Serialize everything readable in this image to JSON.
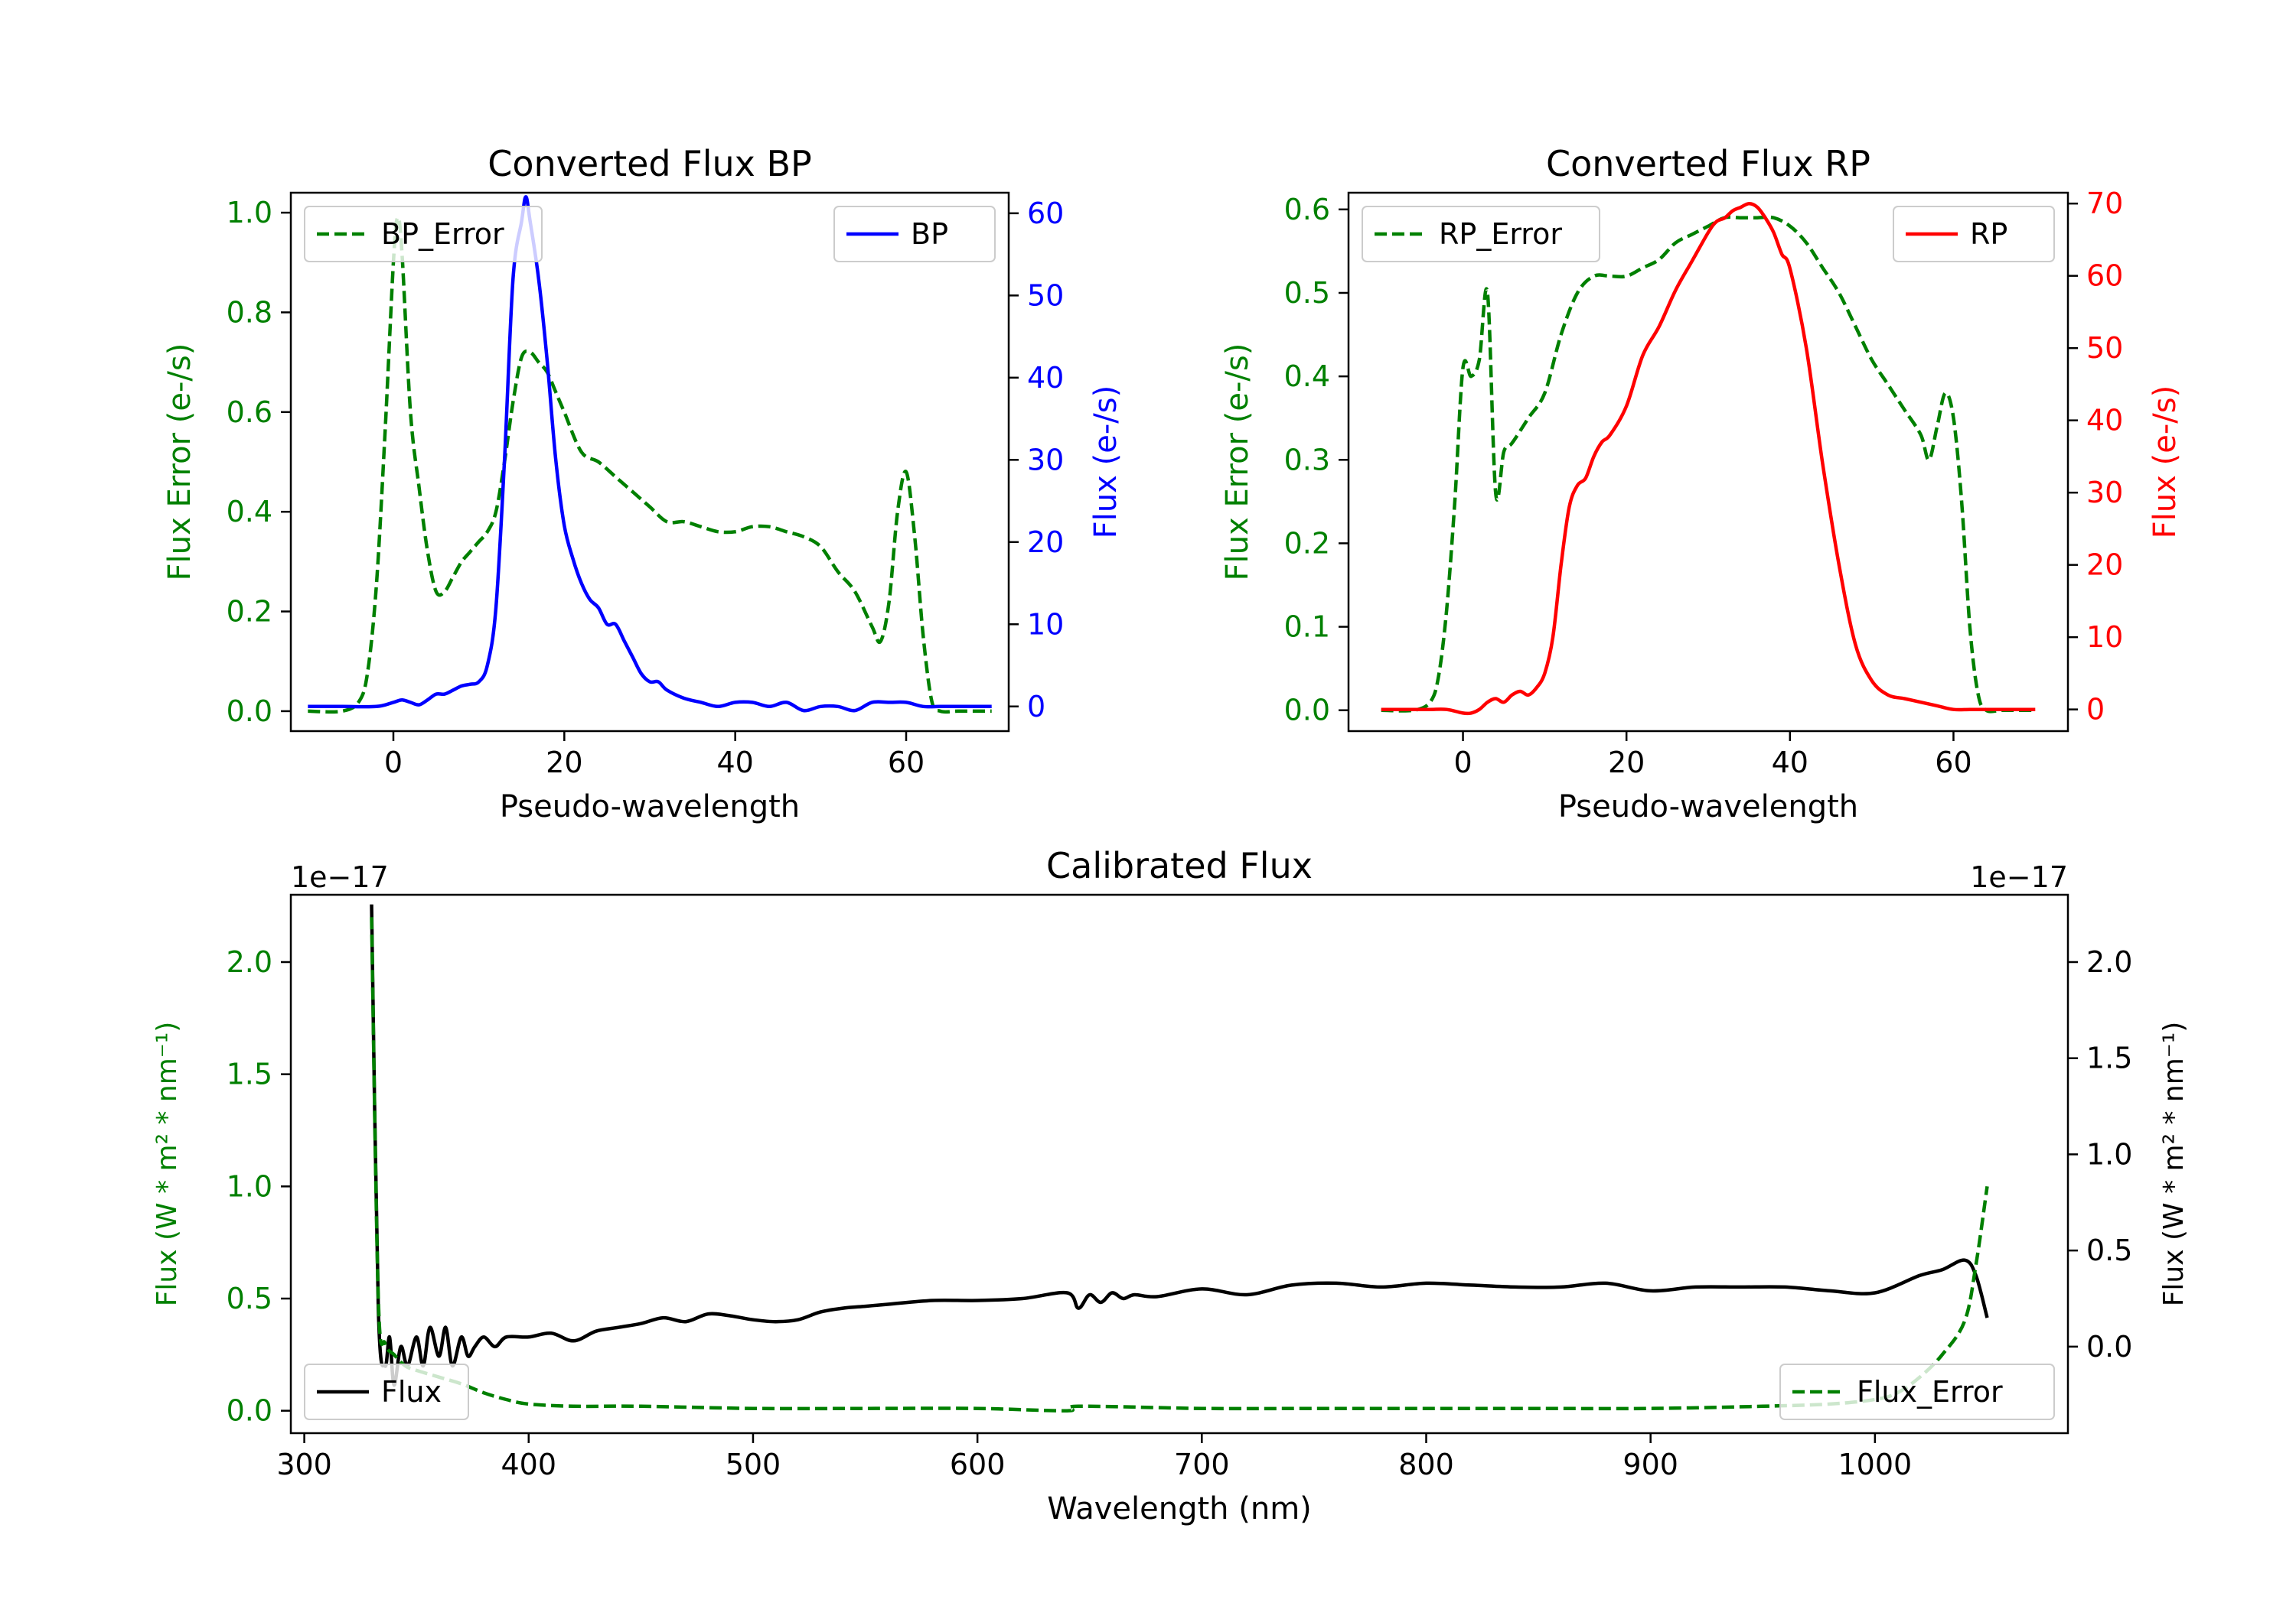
{
  "colors": {
    "error": "#008000",
    "bp": "#0000ff",
    "rp": "#ff0000",
    "flux": "#000000",
    "axis": "#000000"
  },
  "chart_data": [
    {
      "id": "bp",
      "type": "line",
      "title": "Converted Flux BP",
      "xlabel": "Pseudo-wavelength",
      "ylabel_left": "Flux Error (e-/s)",
      "ylabel_right": "Flux (e-/s)",
      "xlim": [
        -12,
        72
      ],
      "ylim_left": [
        -0.04,
        1.04
      ],
      "ylim_right": [
        -3,
        62.5
      ],
      "xticks": [
        0,
        20,
        40,
        60
      ],
      "yticks_left": [
        0.0,
        0.2,
        0.4,
        0.6,
        0.8,
        1.0
      ],
      "yticks_right": [
        0,
        10,
        20,
        30,
        40,
        50,
        60
      ],
      "ytick_labels_left": [
        "0.0",
        "0.2",
        "0.4",
        "0.6",
        "0.8",
        "1.0"
      ],
      "ytick_labels_right": [
        "0",
        "10",
        "20",
        "30",
        "40",
        "50",
        "60"
      ],
      "legend_left": "BP_Error",
      "legend_right": "BP",
      "series": [
        {
          "name": "BP_Error",
          "axis": "left",
          "style": "dashed",
          "color": "#008000",
          "x": [
            -10,
            -6,
            -4,
            -3,
            -2,
            -1,
            0,
            0.5,
            1,
            2,
            3,
            4,
            5,
            6,
            7,
            8,
            9,
            10,
            11,
            12,
            13,
            14,
            15,
            16,
            17,
            18,
            19,
            20,
            22,
            24,
            26,
            28,
            30,
            32,
            34,
            36,
            38,
            40,
            42,
            44,
            46,
            48,
            50,
            52,
            54,
            56,
            57,
            58,
            59,
            60,
            61,
            62,
            63,
            64,
            66,
            68,
            70
          ],
          "y": [
            0.0,
            0.0,
            0.02,
            0.08,
            0.25,
            0.55,
            0.9,
            0.99,
            0.92,
            0.6,
            0.45,
            0.32,
            0.24,
            0.24,
            0.27,
            0.3,
            0.32,
            0.34,
            0.36,
            0.4,
            0.5,
            0.62,
            0.71,
            0.72,
            0.7,
            0.68,
            0.64,
            0.6,
            0.52,
            0.5,
            0.47,
            0.44,
            0.41,
            0.38,
            0.38,
            0.37,
            0.36,
            0.36,
            0.37,
            0.37,
            0.36,
            0.35,
            0.33,
            0.28,
            0.24,
            0.17,
            0.14,
            0.22,
            0.4,
            0.48,
            0.35,
            0.15,
            0.02,
            0.0,
            0.0,
            0.0,
            0.0
          ]
        },
        {
          "name": "BP",
          "axis": "right",
          "style": "solid",
          "color": "#0000ff",
          "x": [
            -10,
            -6,
            -2,
            0,
            1,
            2,
            3,
            4,
            5,
            6,
            7,
            8,
            9,
            10,
            11,
            12,
            13,
            14,
            15,
            15.5,
            16,
            17,
            18,
            19,
            20,
            21,
            22,
            23,
            24,
            25,
            26,
            27,
            28,
            29,
            30,
            31,
            32,
            34,
            36,
            38,
            40,
            42,
            44,
            46,
            48,
            50,
            52,
            54,
            56,
            58,
            60,
            62,
            64,
            66,
            68,
            70
          ],
          "y": [
            0,
            0,
            0,
            0.5,
            0.8,
            0.5,
            0.2,
            0.8,
            1.5,
            1.5,
            2,
            2.5,
            2.7,
            3,
            5,
            12,
            30,
            52,
            59,
            62,
            59,
            52,
            42,
            30,
            22,
            18,
            15,
            13,
            12,
            10,
            10,
            8,
            6,
            4,
            3,
            3,
            2,
            1,
            0.5,
            0,
            0.5,
            0.5,
            0,
            0.5,
            -0.5,
            0,
            0,
            -0.5,
            0.5,
            0.5,
            0.5,
            0,
            0,
            0,
            0,
            0
          ]
        }
      ]
    },
    {
      "id": "rp",
      "type": "line",
      "title": "Converted Flux RP",
      "xlabel": "Pseudo-wavelength",
      "ylabel_left": "Flux Error (e-/s)",
      "ylabel_right": "Flux (e-/s)",
      "xlim": [
        -14,
        74
      ],
      "ylim_left": [
        -0.025,
        0.62
      ],
      "ylim_right": [
        -3,
        71.5
      ],
      "xticks": [
        0,
        20,
        40,
        60
      ],
      "yticks_left": [
        0.0,
        0.1,
        0.2,
        0.3,
        0.4,
        0.5,
        0.6
      ],
      "yticks_right": [
        0,
        10,
        20,
        30,
        40,
        50,
        60,
        70
      ],
      "ytick_labels_left": [
        "0.0",
        "0.1",
        "0.2",
        "0.3",
        "0.4",
        "0.5",
        "0.6"
      ],
      "ytick_labels_right": [
        "0",
        "10",
        "20",
        "30",
        "40",
        "50",
        "60",
        "70"
      ],
      "legend_left": "RP_Error",
      "legend_right": "RP",
      "series": [
        {
          "name": "RP_Error",
          "axis": "left",
          "style": "dashed",
          "color": "#008000",
          "x": [
            -10,
            -6,
            -4,
            -3,
            -2,
            -1,
            0,
            1,
            2,
            3,
            4,
            5,
            6,
            8,
            10,
            12,
            14,
            16,
            18,
            20,
            22,
            24,
            26,
            28,
            30,
            32,
            34,
            36,
            38,
            40,
            42,
            44,
            46,
            48,
            50,
            52,
            54,
            56,
            57,
            58,
            59,
            60,
            61,
            62,
            63,
            64,
            66,
            68,
            70
          ],
          "y": [
            0.0,
            0.0,
            0.01,
            0.04,
            0.12,
            0.25,
            0.41,
            0.4,
            0.42,
            0.5,
            0.26,
            0.31,
            0.32,
            0.35,
            0.38,
            0.45,
            0.5,
            0.52,
            0.52,
            0.52,
            0.53,
            0.54,
            0.56,
            0.57,
            0.58,
            0.59,
            0.59,
            0.59,
            0.59,
            0.58,
            0.56,
            0.53,
            0.5,
            0.46,
            0.42,
            0.39,
            0.36,
            0.33,
            0.3,
            0.34,
            0.38,
            0.35,
            0.25,
            0.1,
            0.02,
            0.0,
            0.0,
            0.0,
            0.0
          ]
        },
        {
          "name": "RP",
          "axis": "right",
          "style": "solid",
          "color": "#ff0000",
          "x": [
            -10,
            -6,
            -4,
            -2,
            0,
            1,
            2,
            3,
            4,
            5,
            6,
            7,
            8,
            9,
            10,
            11,
            12,
            13,
            14,
            15,
            16,
            17,
            18,
            20,
            22,
            24,
            26,
            28,
            30,
            31,
            32,
            33,
            34,
            35,
            36,
            37,
            38,
            39,
            40,
            42,
            44,
            46,
            48,
            50,
            52,
            54,
            56,
            58,
            60,
            62,
            64,
            66,
            68,
            70
          ],
          "y": [
            0,
            0,
            0,
            0,
            -0.5,
            -0.5,
            0,
            1,
            1.5,
            1,
            2,
            2.5,
            2,
            3,
            5,
            10,
            20,
            28,
            31,
            32,
            35,
            37,
            38,
            42,
            49,
            53,
            58,
            62,
            66,
            67.5,
            68,
            69,
            69.5,
            70,
            69.5,
            68,
            66,
            63,
            61,
            50,
            34,
            20,
            9,
            4,
            2,
            1.5,
            1,
            0.5,
            0,
            0,
            0,
            0,
            0,
            0
          ]
        }
      ]
    },
    {
      "id": "calibrated",
      "type": "line",
      "title": "Calibrated Flux",
      "xlabel": "Wavelength (nm)",
      "ylabel_left": "Flux (W * m² * nm⁻¹)",
      "ylabel_right": "Flux (W * m² * nm⁻¹)",
      "offset_left": "1e−17",
      "offset_right": "1e−17",
      "xlim": [
        294,
        1086
      ],
      "ylim_left": [
        -0.1,
        2.3
      ],
      "ylim_right": [
        -0.45,
        2.35
      ],
      "xticks": [
        300,
        400,
        500,
        600,
        700,
        800,
        900,
        1000
      ],
      "yticks_left": [
        0.0,
        0.5,
        1.0,
        1.5,
        2.0
      ],
      "yticks_right": [
        0.0,
        0.5,
        1.0,
        1.5,
        2.0
      ],
      "ytick_labels_left": [
        "0.0",
        "0.5",
        "1.0",
        "1.5",
        "2.0"
      ],
      "ytick_labels_right": [
        "0.0",
        "0.5",
        "1.0",
        "1.5",
        "2.0"
      ],
      "legend_left": "Flux",
      "legend_right": "Flux_Error",
      "series": [
        {
          "name": "Flux",
          "axis": "right",
          "style": "solid",
          "color": "#000000",
          "x": [
            330,
            333,
            336,
            338,
            340,
            343,
            346,
            350,
            353,
            356,
            360,
            363,
            366,
            370,
            373,
            376,
            380,
            385,
            390,
            400,
            410,
            420,
            430,
            440,
            450,
            460,
            470,
            480,
            490,
            500,
            510,
            520,
            530,
            540,
            550,
            560,
            580,
            600,
            620,
            640,
            645,
            650,
            655,
            660,
            665,
            670,
            680,
            700,
            720,
            740,
            760,
            780,
            800,
            820,
            840,
            860,
            880,
            900,
            920,
            940,
            960,
            980,
            1000,
            1020,
            1030,
            1040,
            1045,
            1050
          ],
          "y": [
            2.3,
            0.2,
            -0.1,
            0.05,
            -0.2,
            0.0,
            -0.1,
            0.05,
            -0.1,
            0.1,
            -0.05,
            0.1,
            -0.1,
            0.05,
            -0.05,
            0.0,
            0.05,
            0.0,
            0.05,
            0.05,
            0.07,
            0.03,
            0.08,
            0.1,
            0.12,
            0.15,
            0.13,
            0.17,
            0.16,
            0.14,
            0.13,
            0.14,
            0.18,
            0.2,
            0.21,
            0.22,
            0.24,
            0.24,
            0.25,
            0.28,
            0.2,
            0.27,
            0.23,
            0.28,
            0.25,
            0.27,
            0.26,
            0.3,
            0.27,
            0.32,
            0.33,
            0.31,
            0.33,
            0.32,
            0.31,
            0.31,
            0.33,
            0.29,
            0.31,
            0.31,
            0.31,
            0.29,
            0.28,
            0.37,
            0.4,
            0.45,
            0.37,
            0.15
          ]
        },
        {
          "name": "Flux_Error",
          "axis": "left",
          "style": "dashed",
          "color": "#008000",
          "x": [
            330,
            333,
            336,
            340,
            345,
            350,
            360,
            370,
            380,
            390,
            400,
            420,
            450,
            500,
            550,
            600,
            640,
            645,
            700,
            750,
            800,
            850,
            900,
            950,
            980,
            1000,
            1010,
            1020,
            1030,
            1040,
            1045,
            1050
          ],
          "y": [
            2.2,
            0.5,
            0.3,
            0.25,
            0.2,
            0.18,
            0.15,
            0.12,
            0.08,
            0.05,
            0.03,
            0.02,
            0.02,
            0.01,
            0.01,
            0.01,
            0.0,
            0.02,
            0.01,
            0.01,
            0.01,
            0.01,
            0.01,
            0.02,
            0.03,
            0.05,
            0.08,
            0.15,
            0.25,
            0.4,
            0.65,
            1.0
          ]
        }
      ]
    }
  ]
}
